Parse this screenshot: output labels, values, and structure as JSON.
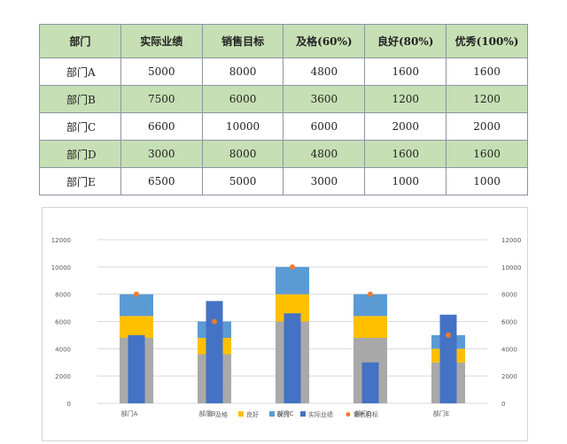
{
  "table": {
    "headers": [
      "部门",
      "实际业绩",
      "销售目标",
      "及格(60%)",
      "良好(80%)",
      "优秀(100%)"
    ],
    "rows": [
      [
        "部门A",
        "5000",
        "8000",
        "4800",
        "1600",
        "1600"
      ],
      [
        "部门B",
        "7500",
        "6000",
        "3600",
        "1200",
        "1200"
      ],
      [
        "部门C",
        "6600",
        "10000",
        "6000",
        "2000",
        "2000"
      ],
      [
        "部门D",
        "3000",
        "8000",
        "4800",
        "1600",
        "1600"
      ],
      [
        "部门E",
        "6500",
        "5000",
        "3000",
        "1000",
        "1000"
      ]
    ]
  },
  "chart_data": {
    "type": "bar",
    "categories": [
      "部门A",
      "部门B",
      "部门C",
      "部门D",
      "部门E"
    ],
    "series": [
      {
        "name": "及格",
        "kind": "stacked-bar",
        "values": [
          4800,
          3600,
          6000,
          4800,
          3000
        ],
        "color": "#a9a9a9"
      },
      {
        "name": "良好",
        "kind": "stacked-bar",
        "values": [
          1600,
          1200,
          2000,
          1600,
          1000
        ],
        "color": "#ffc000"
      },
      {
        "name": "优秀",
        "kind": "stacked-bar",
        "values": [
          1600,
          1200,
          2000,
          1600,
          1000
        ],
        "color": "#5b9bd5"
      },
      {
        "name": "实际业绩",
        "kind": "bar",
        "values": [
          5000,
          7500,
          6600,
          3000,
          6500
        ],
        "color": "#4472c4"
      },
      {
        "name": "销售目标",
        "kind": "marker",
        "values": [
          8000,
          6000,
          10000,
          8000,
          5000
        ],
        "color": "#ed7d31"
      }
    ],
    "ylim": [
      0,
      12000
    ],
    "y_ticks": [
      0,
      2000,
      4000,
      6000,
      8000,
      10000,
      12000
    ],
    "secondary_y_ticks": [
      0,
      2000,
      4000,
      6000,
      8000,
      10000,
      12000
    ],
    "grid": true,
    "legend_position": "bottom"
  }
}
